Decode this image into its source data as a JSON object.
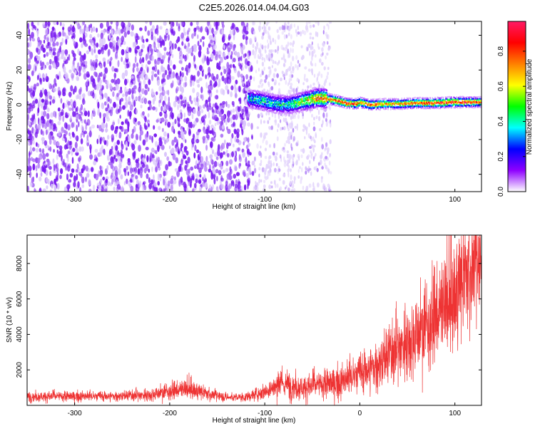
{
  "title": "C2E5.2026.014.04.04.G03",
  "chart_data": [
    {
      "type": "heatmap",
      "xlabel": "Height of straight line (km)",
      "ylabel": "Frequency (Hz)",
      "xlim": [
        -350,
        128
      ],
      "ylim": [
        -50,
        48
      ],
      "x_ticks": [
        -300,
        -200,
        -100,
        0,
        100
      ],
      "y_ticks": [
        -40,
        -20,
        0,
        20,
        40
      ],
      "colorbar": {
        "label": "Normalized spectral amplitude",
        "range": [
          0,
          0.97
        ],
        "ticks": [
          0.0,
          0.2,
          0.4,
          0.6,
          0.8
        ],
        "colors": [
          "#ffffff",
          "#8f00ff",
          "#0000ff",
          "#00ffff",
          "#00ff00",
          "#ffff00",
          "#ff8000",
          "#ff0000",
          "#ff1a66"
        ]
      },
      "noise_region": {
        "x_range": [
          -350,
          -112
        ],
        "density": "dense"
      },
      "faded_region": {
        "x_range": [
          -112,
          -30
        ],
        "density": "sparse"
      },
      "signal_track": {
        "x": [
          -118,
          -105,
          -90,
          -75,
          -60,
          -45,
          -35,
          -25,
          -15,
          -5,
          0,
          10,
          25,
          40,
          60,
          80,
          95,
          110,
          125
        ],
        "freq": [
          3.5,
          2.5,
          0.5,
          0.0,
          2.0,
          4.0,
          3.5,
          2.5,
          1.0,
          0.5,
          1.5,
          0.0,
          0.5,
          0.5,
          1.0,
          1.0,
          1.5,
          1.5,
          1.5
        ],
        "amplitude": [
          0.35,
          0.4,
          0.38,
          0.4,
          0.55,
          0.7,
          0.75,
          0.8,
          0.85,
          0.8,
          0.7,
          0.78,
          0.72,
          0.7,
          0.78,
          0.85,
          0.9,
          0.85,
          0.75
        ]
      }
    },
    {
      "type": "line",
      "xlabel": "Height of straight line (km)",
      "ylabel": "SNR (10 * v/v)",
      "xlim": [
        -350,
        128
      ],
      "ylim": [
        0,
        9600
      ],
      "x_ticks": [
        -300,
        -200,
        -100,
        0,
        100
      ],
      "y_ticks": [
        2000,
        4000,
        6000,
        8000
      ],
      "line_color": "#ee3333",
      "series": [
        {
          "x": [
            -350,
            -300,
            -250,
            -220,
            -200,
            -180,
            -160,
            -140,
            -120,
            -100,
            -80,
            -60,
            -40,
            -20,
            0,
            20,
            40,
            60,
            80,
            100,
            110,
            120,
            128
          ],
          "y": [
            500,
            500,
            520,
            600,
            800,
            900,
            650,
            450,
            450,
            800,
            1200,
            1000,
            1150,
            1300,
            1800,
            2300,
            3200,
            4000,
            5000,
            6000,
            7200,
            7800,
            8000
          ],
          "spread": [
            250,
            250,
            250,
            300,
            400,
            450,
            300,
            200,
            200,
            400,
            700,
            600,
            700,
            800,
            1000,
            1300,
            1600,
            1900,
            2200,
            2500,
            2600,
            2500,
            2300
          ]
        }
      ]
    }
  ]
}
